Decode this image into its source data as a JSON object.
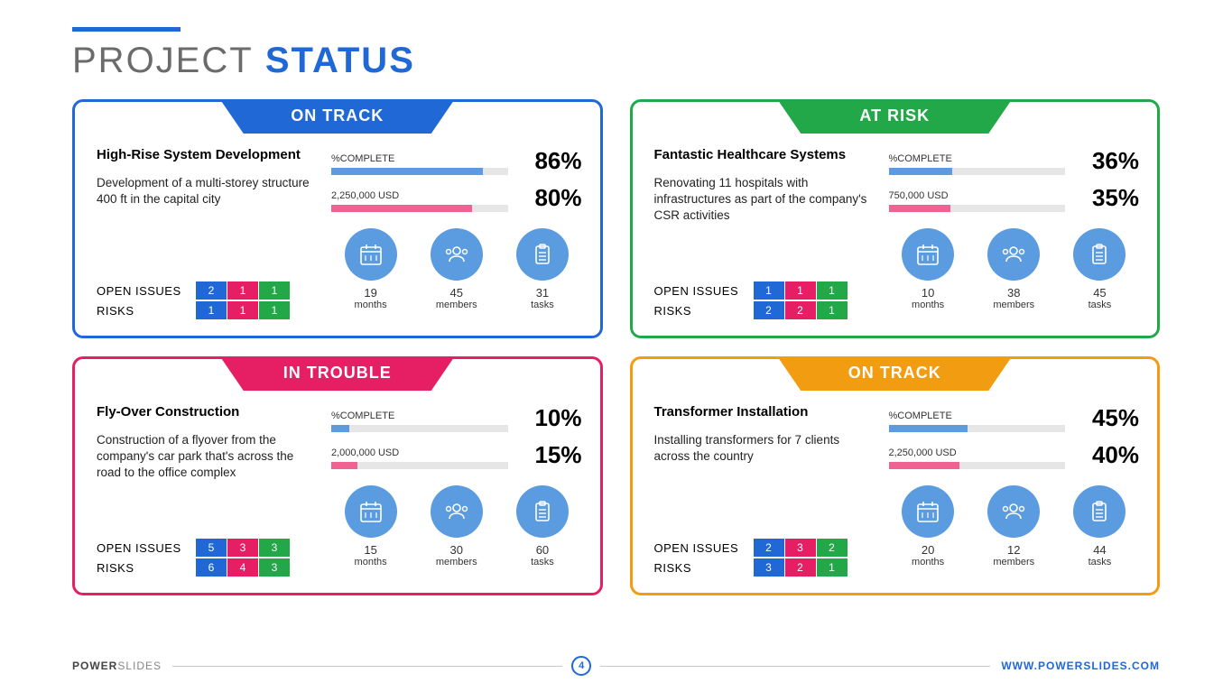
{
  "colors": {
    "blue": "#1f68d6",
    "green": "#23a849",
    "pink": "#e61e64",
    "orange": "#f29c11",
    "barBlue": "#5b9be0",
    "barPink": "#f06292",
    "chipBlue": "#1f68d6",
    "chipPink": "#e61e64",
    "chipGreen": "#23a849",
    "iconCircle": "#5b9be0",
    "trackGrey": "#e6e6e6",
    "titleGrey": "#6b6b6b"
  },
  "header": {
    "title1": "PROJECT",
    "title2": "STATUS"
  },
  "labels": {
    "complete": "%COMPLETE",
    "openIssues": "OPEN ISSUES",
    "risks": "RISKS",
    "monthsUnit": "months",
    "membersUnit": "members",
    "tasksUnit": "tasks"
  },
  "footer": {
    "brand1": "POWER",
    "brand2": "SLIDES",
    "page": "4",
    "url": "WWW.POWERSLIDES.COM"
  },
  "cards": [
    {
      "status": "ON TRACK",
      "borderColor": "#1f68d6",
      "title": "High-Rise System Development",
      "desc": "Development of a multi-storey structure 400 ft in the capital city",
      "completePct": 86,
      "budgetLabel": "2,250,000 USD",
      "budgetPct": 80,
      "issues": [
        2,
        1,
        1
      ],
      "risks": [
        1,
        1,
        1
      ],
      "months": 19,
      "members": 45,
      "tasks": 31
    },
    {
      "status": "AT RISK",
      "borderColor": "#23a849",
      "title": "Fantastic Healthcare Systems",
      "desc": "Renovating 11 hospitals with infrastructures as part of the company's CSR activities",
      "completePct": 36,
      "budgetLabel": "750,000 USD",
      "budgetPct": 35,
      "issues": [
        1,
        1,
        1
      ],
      "risks": [
        2,
        2,
        1
      ],
      "months": 10,
      "members": 38,
      "tasks": 45
    },
    {
      "status": "IN TROUBLE",
      "borderColor": "#e61e64",
      "title": "Fly-Over Construction",
      "desc": "Construction of a flyover from the company's car park that's across the road to the office complex",
      "completePct": 10,
      "budgetLabel": "2,000,000 USD",
      "budgetPct": 15,
      "issues": [
        5,
        3,
        3
      ],
      "risks": [
        6,
        4,
        3
      ],
      "months": 15,
      "members": 30,
      "tasks": 60
    },
    {
      "status": "ON TRACK",
      "borderColor": "#f29c11",
      "title": "Transformer Installation",
      "desc": "Installing transformers for 7 clients across the country",
      "completePct": 45,
      "budgetLabel": "2,250,000 USD",
      "budgetPct": 40,
      "issues": [
        2,
        3,
        2
      ],
      "risks": [
        3,
        2,
        1
      ],
      "months": 20,
      "members": 12,
      "tasks": 44
    }
  ]
}
